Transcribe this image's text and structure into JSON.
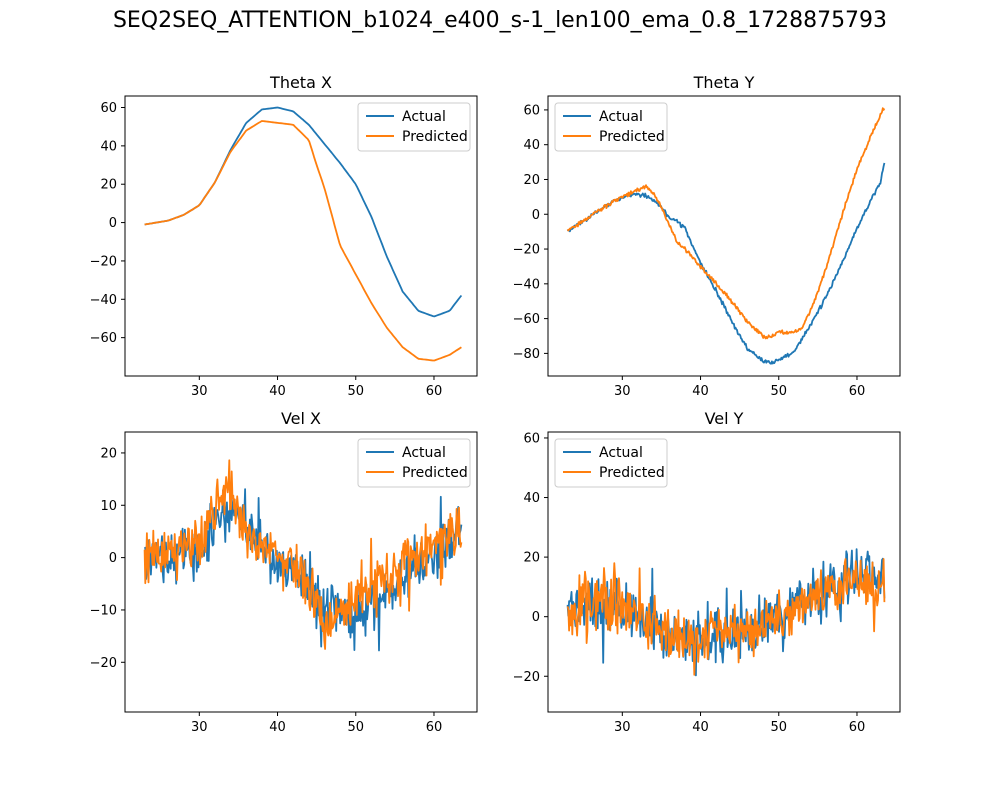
{
  "figure": {
    "title": "SEQ2SEQ_ATTENTION_b1024_e400_s-1_len100_ema_0.8_1728875793"
  },
  "colors": {
    "actual": "#1f77b4",
    "predicted": "#ff7f0e"
  },
  "chart_data": [
    {
      "type": "line",
      "title": "Theta X",
      "xlabel": "",
      "ylabel": "",
      "xlim": [
        20.5,
        65.5
      ],
      "ylim": [
        -80,
        66
      ],
      "xticks": [
        30,
        40,
        50,
        60
      ],
      "yticks": [
        -60,
        -40,
        -20,
        0,
        20,
        40,
        60
      ],
      "legend": "upper right",
      "grid": false,
      "noise": 0,
      "series": [
        {
          "name": "Actual",
          "color": "#1f77b4",
          "points": [
            [
              23,
              -1
            ],
            [
              26,
              1
            ],
            [
              28,
              4
            ],
            [
              30,
              9
            ],
            [
              32,
              21
            ],
            [
              34,
              38
            ],
            [
              36,
              52
            ],
            [
              38,
              59
            ],
            [
              40,
              60
            ],
            [
              42,
              58
            ],
            [
              44,
              51
            ],
            [
              46,
              41
            ],
            [
              48,
              31
            ],
            [
              50,
              20
            ],
            [
              52,
              3
            ],
            [
              54,
              -18
            ],
            [
              56,
              -36
            ],
            [
              58,
              -46
            ],
            [
              60,
              -49
            ],
            [
              62,
              -46
            ],
            [
              63.5,
              -38
            ]
          ]
        },
        {
          "name": "Predicted",
          "color": "#ff7f0e",
          "points": [
            [
              23,
              -1
            ],
            [
              26,
              1
            ],
            [
              28,
              4
            ],
            [
              30,
              9
            ],
            [
              32,
              21
            ],
            [
              34,
              37
            ],
            [
              36,
              48
            ],
            [
              38,
              53
            ],
            [
              40,
              52
            ],
            [
              42,
              51
            ],
            [
              44,
              43
            ],
            [
              45,
              30
            ],
            [
              46,
              18
            ],
            [
              48,
              -12
            ],
            [
              50,
              -27
            ],
            [
              52,
              -42
            ],
            [
              54,
              -55
            ],
            [
              56,
              -65
            ],
            [
              58,
              -71
            ],
            [
              60,
              -72
            ],
            [
              62,
              -69
            ],
            [
              63.5,
              -65
            ]
          ]
        }
      ]
    },
    {
      "type": "line",
      "title": "Theta Y",
      "xlabel": "",
      "ylabel": "",
      "xlim": [
        20.5,
        65.5
      ],
      "ylim": [
        -93,
        68
      ],
      "xticks": [
        30,
        40,
        50,
        60
      ],
      "yticks": [
        -80,
        -60,
        -40,
        -20,
        0,
        20,
        40,
        60
      ],
      "legend": "upper left",
      "grid": false,
      "noise": 1.2,
      "series": [
        {
          "name": "Actual",
          "color": "#1f77b4",
          "points": [
            [
              23,
              -10
            ],
            [
              25,
              -4
            ],
            [
              27,
              2
            ],
            [
              29,
              8
            ],
            [
              31,
              11
            ],
            [
              33,
              11
            ],
            [
              34,
              8
            ],
            [
              35,
              4
            ],
            [
              36,
              -2
            ],
            [
              37,
              -4
            ],
            [
              38,
              -8
            ],
            [
              39,
              -18
            ],
            [
              40,
              -28
            ],
            [
              42,
              -44
            ],
            [
              44,
              -62
            ],
            [
              46,
              -77
            ],
            [
              48,
              -84
            ],
            [
              49,
              -85
            ],
            [
              50,
              -84
            ],
            [
              52,
              -79
            ],
            [
              54,
              -64
            ],
            [
              56,
              -48
            ],
            [
              58,
              -29
            ],
            [
              60,
              -8
            ],
            [
              62,
              10
            ],
            [
              63,
              18
            ],
            [
              63.5,
              30
            ]
          ]
        },
        {
          "name": "Predicted",
          "color": "#ff7f0e",
          "points": [
            [
              23,
              -9
            ],
            [
              25,
              -4
            ],
            [
              27,
              2
            ],
            [
              29,
              8
            ],
            [
              31,
              12
            ],
            [
              33,
              16
            ],
            [
              34,
              12
            ],
            [
              35,
              4
            ],
            [
              36,
              -6
            ],
            [
              37,
              -16
            ],
            [
              38,
              -20
            ],
            [
              40,
              -30
            ],
            [
              42,
              -40
            ],
            [
              44,
              -50
            ],
            [
              46,
              -62
            ],
            [
              48,
              -70
            ],
            [
              49,
              -70
            ],
            [
              50,
              -68
            ],
            [
              52,
              -68
            ],
            [
              53,
              -65
            ],
            [
              54,
              -56
            ],
            [
              56,
              -32
            ],
            [
              58,
              -2
            ],
            [
              60,
              26
            ],
            [
              62,
              47
            ],
            [
              63.5,
              62
            ]
          ]
        }
      ]
    },
    {
      "type": "line",
      "title": "Vel X",
      "xlabel": "",
      "ylabel": "",
      "xlim": [
        20.5,
        65.5
      ],
      "ylim": [
        -29.5,
        24
      ],
      "xticks": [
        30,
        40,
        50,
        60
      ],
      "yticks": [
        -20,
        -10,
        0,
        10,
        20
      ],
      "legend": "upper right",
      "grid": false,
      "noise": 5,
      "series": [
        {
          "name": "Actual",
          "color": "#1f77b4",
          "points": [
            [
              23,
              0
            ],
            [
              28,
              0
            ],
            [
              30,
              1
            ],
            [
              31,
              4
            ],
            [
              33,
              8
            ],
            [
              35,
              8
            ],
            [
              37,
              3
            ],
            [
              39,
              0
            ],
            [
              41,
              -2
            ],
            [
              43,
              -4
            ],
            [
              45,
              -8
            ],
            [
              47,
              -10
            ],
            [
              49,
              -11
            ],
            [
              51,
              -10
            ],
            [
              53,
              -8
            ],
            [
              55,
              -5
            ],
            [
              57,
              -2
            ],
            [
              59,
              0
            ],
            [
              61,
              2
            ],
            [
              63.5,
              5
            ]
          ]
        },
        {
          "name": "Predicted",
          "color": "#ff7f0e",
          "points": [
            [
              23,
              0
            ],
            [
              24,
              2
            ],
            [
              26,
              0
            ],
            [
              28,
              2
            ],
            [
              30,
              3
            ],
            [
              31,
              6
            ],
            [
              32,
              11
            ],
            [
              34,
              12
            ],
            [
              35,
              7
            ],
            [
              37,
              3
            ],
            [
              39,
              2
            ],
            [
              41,
              0
            ],
            [
              43,
              -3
            ],
            [
              45,
              -9
            ],
            [
              46,
              -14
            ],
            [
              47,
              -12
            ],
            [
              49,
              -8
            ],
            [
              51,
              -7
            ],
            [
              53,
              -5
            ],
            [
              55,
              -3
            ],
            [
              57,
              0
            ],
            [
              59,
              1
            ],
            [
              61,
              3
            ],
            [
              63.5,
              6
            ]
          ]
        }
      ]
    },
    {
      "type": "line",
      "title": "Vel Y",
      "xlabel": "",
      "ylabel": "",
      "xlim": [
        20.5,
        65.5
      ],
      "ylim": [
        -32,
        62
      ],
      "xticks": [
        30,
        40,
        50,
        60
      ],
      "yticks": [
        -20,
        0,
        20,
        40,
        60
      ],
      "legend": "upper left",
      "grid": false,
      "noise": 9,
      "series": [
        {
          "name": "Actual",
          "color": "#1f77b4",
          "points": [
            [
              23,
              1
            ],
            [
              25,
              3
            ],
            [
              27,
              4
            ],
            [
              29,
              4
            ],
            [
              31,
              2
            ],
            [
              33,
              -2
            ],
            [
              35,
              -6
            ],
            [
              37,
              -8
            ],
            [
              39,
              -8
            ],
            [
              41,
              -8
            ],
            [
              43,
              -7
            ],
            [
              45,
              -5
            ],
            [
              47,
              -4
            ],
            [
              49,
              -1
            ],
            [
              51,
              2
            ],
            [
              53,
              5
            ],
            [
              55,
              8
            ],
            [
              57,
              11
            ],
            [
              59,
              12
            ],
            [
              61,
              13
            ],
            [
              62,
              14
            ],
            [
              63.5,
              12
            ]
          ]
        },
        {
          "name": "Predicted",
          "color": "#ff7f0e",
          "points": [
            [
              23,
              1
            ],
            [
              25,
              5
            ],
            [
              27,
              5
            ],
            [
              29,
              4
            ],
            [
              31,
              2
            ],
            [
              33,
              -2
            ],
            [
              35,
              -6
            ],
            [
              37,
              -7
            ],
            [
              39,
              -7
            ],
            [
              41,
              -6
            ],
            [
              43,
              -5
            ],
            [
              45,
              -4
            ],
            [
              47,
              -3
            ],
            [
              49,
              0
            ],
            [
              51,
              2
            ],
            [
              53,
              4
            ],
            [
              55,
              7
            ],
            [
              57,
              10
            ],
            [
              59,
              11
            ],
            [
              61,
              10
            ],
            [
              63.5,
              9
            ]
          ]
        }
      ]
    }
  ]
}
